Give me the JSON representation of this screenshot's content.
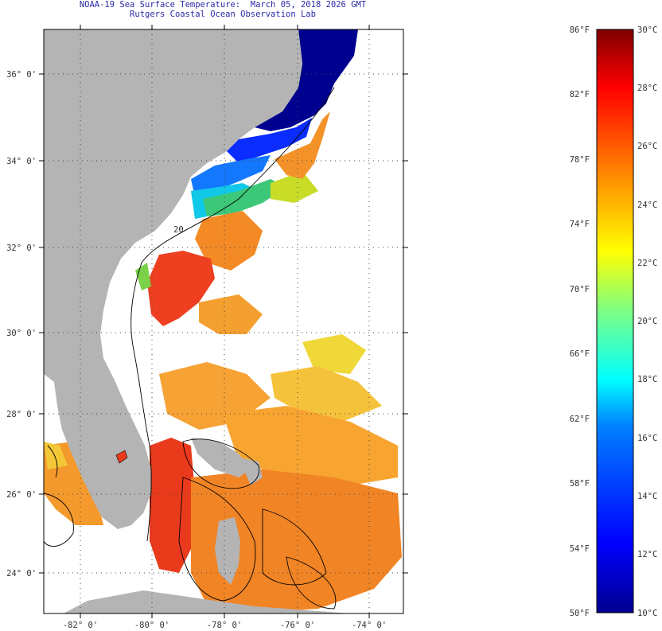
{
  "header": {
    "title": "NOAA-19 Sea Surface Temperature:  March 05, 2018 2026 GMT",
    "subtitle": "Rutgers Coastal Ocean Observation Lab"
  },
  "map": {
    "lat_labels": [
      "36° 0'",
      "34° 0'",
      "32° 0'",
      "30° 0'",
      "28° 0'",
      "26° 0'",
      "24° 0'"
    ],
    "lon_labels": [
      "-82° 0'",
      "-80° 0'",
      "-78° 0'",
      "-76° 0'",
      "-74° 0'"
    ],
    "contour_label": "20",
    "colors": {
      "land": "#b4b4b4",
      "water_background": "#ffffff",
      "grid": "#444444",
      "title": "#2a2aa8"
    }
  },
  "colorbar": {
    "fahrenheit_labels": [
      "86°F",
      "82°F",
      "78°F",
      "74°F",
      "70°F",
      "66°F",
      "62°F",
      "58°F",
      "54°F",
      "50°F"
    ],
    "celsius_labels": [
      "30°C",
      "28°C",
      "26°C",
      "24°C",
      "22°C",
      "20°C",
      "18°C",
      "16°C",
      "14°C",
      "12°C",
      "10°C"
    ],
    "range_celsius": [
      10,
      30
    ],
    "range_fahrenheit": [
      50,
      86
    ],
    "colors_bottom_to_top": [
      "#00008f",
      "#0000ff",
      "#0080ff",
      "#00ffff",
      "#80ff80",
      "#ffff00",
      "#ff8000",
      "#ff0000",
      "#800000"
    ]
  }
}
